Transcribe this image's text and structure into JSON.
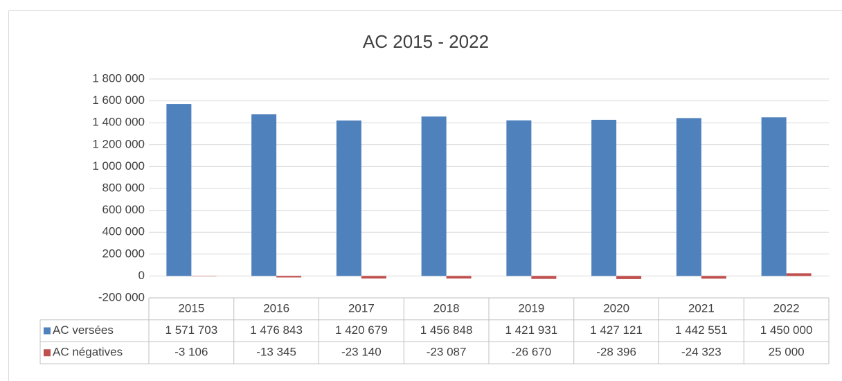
{
  "chart_data": {
    "type": "bar",
    "title": "AC 2015 - 2022",
    "categories": [
      "2015",
      "2016",
      "2017",
      "2018",
      "2019",
      "2020",
      "2021",
      "2022"
    ],
    "series": [
      {
        "name": "AC versées",
        "color": "#4f81bd",
        "values": [
          1571703,
          1476843,
          1420679,
          1456848,
          1421931,
          1427121,
          1442551,
          1450000
        ],
        "value_labels": [
          "1 571 703",
          "1 476 843",
          "1 420 679",
          "1 456 848",
          "1 421 931",
          "1 427 121",
          "1 442 551",
          "1 450 000"
        ]
      },
      {
        "name": "AC négatives",
        "color": "#c0504d",
        "values": [
          -3106,
          -13345,
          -23140,
          -23087,
          -26670,
          -28396,
          -24323,
          25000
        ],
        "value_labels": [
          "-3 106",
          "-13 345",
          "-23 140",
          "-23 087",
          "-26 670",
          "-28 396",
          "-24 323",
          "25 000"
        ]
      }
    ],
    "ylim": [
      -200000,
      1800000
    ],
    "yticks": [
      {
        "value": -200000,
        "label": "-200 000"
      },
      0,
      {
        "value": 200000,
        "label": "200 000"
      },
      {
        "value": 400000,
        "label": "400 000"
      },
      {
        "value": 600000,
        "label": "600 000"
      },
      {
        "value": 800000,
        "label": "800 000"
      },
      {
        "value": 1000000,
        "label": "1 000 000"
      },
      {
        "value": 1200000,
        "label": "1 200 000"
      },
      {
        "value": 1400000,
        "label": "1 400 000"
      },
      {
        "value": 1600000,
        "label": "1 600 000"
      },
      {
        "value": 1800000,
        "label": "1 800 000"
      }
    ],
    "grid": true,
    "legend": "data-table"
  }
}
